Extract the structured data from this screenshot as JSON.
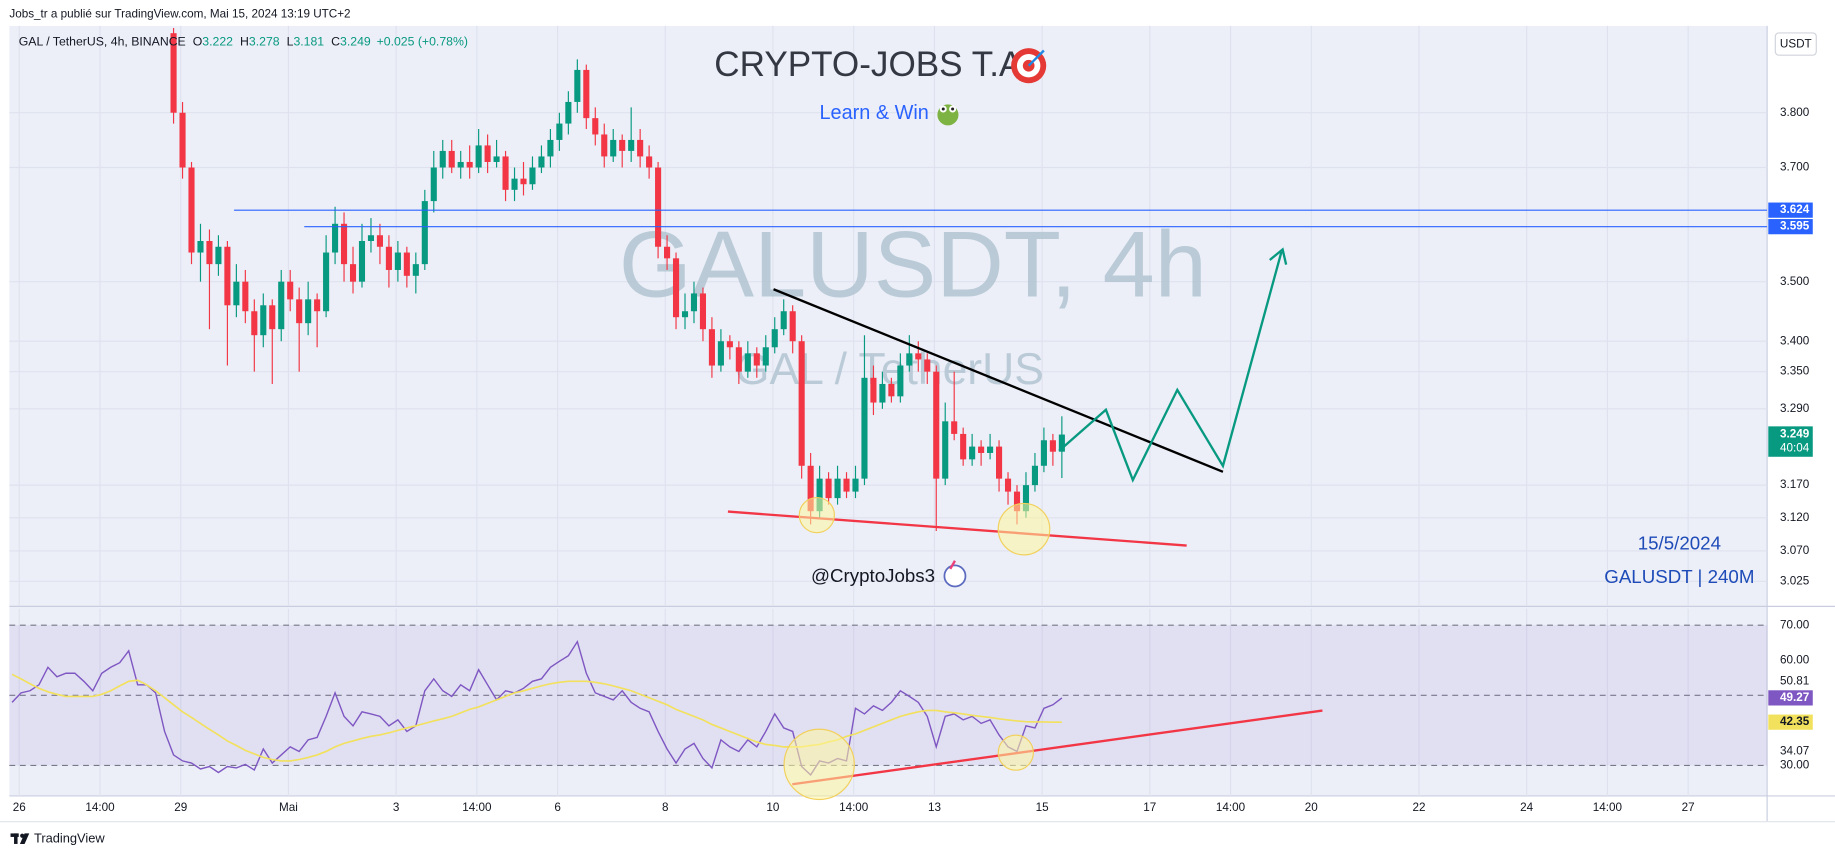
{
  "header": {
    "published": "Jobs_tr a publié sur TradingView.com, Mai 15, 2024 13:19 UTC+2"
  },
  "footer": {
    "brand": "TradingView"
  },
  "chart_data": [
    {
      "type": "candlestick",
      "symbol": "GAL / TetherUS, 4h, BINANCE",
      "ohlc_labels": [
        "O",
        "H",
        "L",
        "C"
      ],
      "change": "+0.025 (+0.78%)",
      "title": "CRYPTO-JOBS T.A",
      "subtitle": "Learn & Win",
      "watermark": "GALUSDT, 4h",
      "watermark_sub": "GAL / TetherUS",
      "currency": "USDT",
      "countdown": "40:04",
      "annotations": [
        "@CryptoJobs3",
        "15/5/2024",
        "GALUSDT | 240M"
      ],
      "log_scale": true,
      "grid": true,
      "ylim": [
        2.99,
        3.964
      ],
      "yticks": [
        3.025,
        {
          "value": 3.07,
          "label": "3.070"
        },
        {
          "value": 3.12,
          "label": "3.120"
        },
        {
          "value": 3.17,
          "label": "3.170"
        },
        {
          "value": 3.29,
          "label": "3.290"
        },
        {
          "value": 3.35,
          "label": "3.350"
        },
        {
          "value": 3.4,
          "label": "3.400"
        },
        {
          "value": 3.5,
          "label": "3.500"
        },
        {
          "value": 3.7,
          "label": "3.700"
        },
        {
          "value": 3.8,
          "label": "3.800"
        }
      ],
      "xlim": [
        -0.3,
        195.6
      ],
      "xticks": [
        {
          "value": 0.8,
          "label": "26"
        },
        {
          "value": 9.8,
          "label": "14:00"
        },
        {
          "value": 18.8,
          "label": "29"
        },
        {
          "value": 30.8,
          "label": "Mai"
        },
        {
          "value": 42.8,
          "label": "3"
        },
        {
          "value": 51.8,
          "label": "14:00"
        },
        {
          "value": 60.8,
          "label": "6"
        },
        {
          "value": 72.8,
          "label": "8"
        },
        {
          "value": 84.8,
          "label": "10"
        },
        {
          "value": 93.8,
          "label": "14:00"
        },
        {
          "value": 102.8,
          "label": "13"
        },
        {
          "value": 114.8,
          "label": "15"
        },
        {
          "value": 126.8,
          "label": "17"
        },
        {
          "value": 135.8,
          "label": "14:00"
        },
        {
          "value": 144.8,
          "label": "20"
        },
        {
          "value": 156.8,
          "label": "22"
        },
        {
          "value": 168.8,
          "label": "24"
        },
        {
          "value": 177.8,
          "label": "14:00"
        },
        {
          "value": 186.8,
          "label": "27"
        }
      ],
      "up_color": "#089981",
      "down_color": "#f23645",
      "price_lines": [
        3.624,
        3.595
      ],
      "price_line_color": "#2962ff",
      "ohlc": [
        null,
        null,
        null,
        null,
        null,
        null,
        null,
        null,
        null,
        null,
        null,
        null,
        null,
        null,
        null,
        null,
        null,
        null,
        [
          3.95,
          3.96,
          3.78,
          3.8
        ],
        [
          3.8,
          3.82,
          3.68,
          3.7
        ],
        [
          3.7,
          3.71,
          3.53,
          3.55
        ],
        [
          3.55,
          3.6,
          3.5,
          3.57
        ],
        [
          3.57,
          3.59,
          3.42,
          3.53
        ],
        [
          3.53,
          3.58,
          3.51,
          3.56
        ],
        [
          3.56,
          3.57,
          3.36,
          3.46
        ],
        [
          3.46,
          3.53,
          3.44,
          3.5
        ],
        [
          3.5,
          3.52,
          3.43,
          3.45
        ],
        [
          3.45,
          3.47,
          3.35,
          3.41
        ],
        [
          3.41,
          3.48,
          3.39,
          3.46
        ],
        [
          3.46,
          3.47,
          3.33,
          3.42
        ],
        [
          3.42,
          3.52,
          3.4,
          3.5
        ],
        [
          3.5,
          3.52,
          3.45,
          3.47
        ],
        [
          3.47,
          3.49,
          3.35,
          3.43
        ],
        [
          3.43,
          3.5,
          3.41,
          3.47
        ],
        [
          3.47,
          3.48,
          3.39,
          3.45
        ],
        [
          3.45,
          3.58,
          3.44,
          3.55
        ],
        [
          3.55,
          3.63,
          3.53,
          3.6
        ],
        [
          3.6,
          3.62,
          3.5,
          3.53
        ],
        [
          3.53,
          3.56,
          3.48,
          3.5
        ],
        [
          3.5,
          3.6,
          3.49,
          3.57
        ],
        [
          3.57,
          3.61,
          3.55,
          3.58
        ],
        [
          3.58,
          3.6,
          3.53,
          3.56
        ],
        [
          3.56,
          3.58,
          3.49,
          3.52
        ],
        [
          3.52,
          3.57,
          3.5,
          3.55
        ],
        [
          3.55,
          3.56,
          3.49,
          3.51
        ],
        [
          3.51,
          3.55,
          3.48,
          3.53
        ],
        [
          3.53,
          3.66,
          3.52,
          3.64
        ],
        [
          3.64,
          3.73,
          3.62,
          3.7
        ],
        [
          3.7,
          3.75,
          3.68,
          3.73
        ],
        [
          3.73,
          3.75,
          3.69,
          3.7
        ],
        [
          3.7,
          3.73,
          3.68,
          3.71
        ],
        [
          3.71,
          3.74,
          3.68,
          3.7
        ],
        [
          3.7,
          3.77,
          3.69,
          3.74
        ],
        [
          3.74,
          3.76,
          3.69,
          3.71
        ],
        [
          3.71,
          3.75,
          3.7,
          3.72
        ],
        [
          3.72,
          3.73,
          3.64,
          3.66
        ],
        [
          3.66,
          3.7,
          3.64,
          3.68
        ],
        [
          3.68,
          3.71,
          3.65,
          3.67
        ],
        [
          3.67,
          3.72,
          3.66,
          3.7
        ],
        [
          3.7,
          3.74,
          3.69,
          3.72
        ],
        [
          3.72,
          3.77,
          3.7,
          3.75
        ],
        [
          3.75,
          3.8,
          3.73,
          3.78
        ],
        [
          3.78,
          3.84,
          3.76,
          3.82
        ],
        [
          3.82,
          3.9,
          3.8,
          3.88
        ],
        [
          3.88,
          3.89,
          3.77,
          3.79
        ],
        [
          3.79,
          3.81,
          3.74,
          3.76
        ],
        [
          3.76,
          3.78,
          3.7,
          3.72
        ],
        [
          3.72,
          3.77,
          3.71,
          3.75
        ],
        [
          3.75,
          3.76,
          3.7,
          3.73
        ],
        [
          3.73,
          3.81,
          3.71,
          3.75
        ],
        [
          3.75,
          3.77,
          3.7,
          3.72
        ],
        [
          3.72,
          3.74,
          3.68,
          3.7
        ],
        [
          3.7,
          3.71,
          3.54,
          3.56
        ],
        [
          3.56,
          3.58,
          3.52,
          3.54
        ],
        [
          3.54,
          3.55,
          3.42,
          3.44
        ],
        [
          3.44,
          3.48,
          3.42,
          3.45
        ],
        [
          3.45,
          3.5,
          3.43,
          3.48
        ],
        [
          3.48,
          3.49,
          3.4,
          3.42
        ],
        [
          3.42,
          3.44,
          3.34,
          3.36
        ],
        [
          3.36,
          3.42,
          3.35,
          3.4
        ],
        [
          3.4,
          3.41,
          3.37,
          3.39
        ],
        [
          3.39,
          3.4,
          3.33,
          3.35
        ],
        [
          3.35,
          3.4,
          3.34,
          3.38
        ],
        [
          3.38,
          3.39,
          3.34,
          3.36
        ],
        [
          3.36,
          3.41,
          3.35,
          3.39
        ],
        [
          3.39,
          3.44,
          3.38,
          3.42
        ],
        [
          3.42,
          3.47,
          3.41,
          3.45
        ],
        [
          3.45,
          3.46,
          3.38,
          3.4
        ],
        [
          3.4,
          3.41,
          3.18,
          3.2
        ],
        [
          3.2,
          3.22,
          3.11,
          3.13
        ],
        [
          3.13,
          3.2,
          3.12,
          3.18
        ],
        [
          3.18,
          3.19,
          3.14,
          3.15
        ],
        [
          3.15,
          3.2,
          3.14,
          3.18
        ],
        [
          3.18,
          3.19,
          3.15,
          3.16
        ],
        [
          3.16,
          3.2,
          3.15,
          3.18
        ],
        [
          3.18,
          3.41,
          3.17,
          3.34
        ],
        [
          3.34,
          3.36,
          3.28,
          3.3
        ],
        [
          3.3,
          3.35,
          3.29,
          3.33
        ],
        [
          3.33,
          3.34,
          3.3,
          3.31
        ],
        [
          3.31,
          3.38,
          3.3,
          3.36
        ],
        [
          3.36,
          3.41,
          3.35,
          3.38
        ],
        [
          3.38,
          3.4,
          3.35,
          3.37
        ],
        [
          3.37,
          3.38,
          3.33,
          3.35
        ],
        [
          3.35,
          3.36,
          3.1,
          3.18
        ],
        [
          3.18,
          3.3,
          3.17,
          3.27
        ],
        [
          3.27,
          3.35,
          3.24,
          3.25
        ],
        [
          3.25,
          3.26,
          3.2,
          3.21
        ],
        [
          3.21,
          3.25,
          3.2,
          3.23
        ],
        [
          3.23,
          3.24,
          3.2,
          3.22
        ],
        [
          3.22,
          3.25,
          3.21,
          3.23
        ],
        [
          3.23,
          3.24,
          3.16,
          3.18
        ],
        [
          3.18,
          3.19,
          3.14,
          3.16
        ],
        [
          3.16,
          3.17,
          3.11,
          3.13
        ],
        [
          3.13,
          3.19,
          3.12,
          3.17
        ],
        [
          3.17,
          3.22,
          3.16,
          3.2
        ],
        [
          3.2,
          3.26,
          3.19,
          3.24
        ],
        [
          3.24,
          3.25,
          3.2,
          3.222
        ],
        [
          3.222,
          3.278,
          3.181,
          3.249
        ]
      ]
    },
    {
      "type": "line",
      "ylim": [
        21.3,
        74.7
      ],
      "yticks": [
        {
          "value": 30,
          "label": "30.00"
        },
        {
          "value": 60,
          "label": "60.00"
        },
        {
          "value": 70,
          "label": "70.00"
        }
      ],
      "levels": [
        70,
        50,
        30
      ],
      "band_color": "#7e57c2",
      "markers": [
        50.81,
        34.07
      ],
      "series": [
        {
          "color": "#7e57c2",
          "values": [
            48,
            50.7,
            51.3,
            53,
            58,
            55.3,
            56.3,
            56.3,
            54,
            51.3,
            56.3,
            58,
            59.3,
            62.7,
            53,
            53,
            50.7,
            39.7,
            33,
            31.3,
            30.7,
            29,
            29.7,
            28,
            29.7,
            29.3,
            30.3,
            28.7,
            34.7,
            30.7,
            33,
            35.3,
            34,
            37.3,
            38,
            44,
            50.7,
            44,
            41.3,
            45.3,
            44.7,
            44,
            41.3,
            43,
            39.7,
            41.3,
            51.3,
            54.7,
            51.3,
            49.7,
            53,
            51.3,
            57.3,
            53,
            48.7,
            51.3,
            50.7,
            52,
            54,
            54.7,
            58,
            59.7,
            61.3,
            65.3,
            56.3,
            50.7,
            49.7,
            48.7,
            51.3,
            48,
            46.3,
            45.3,
            39.7,
            34.7,
            30.7,
            34.7,
            36.3,
            32,
            29.3,
            37.3,
            35.3,
            34,
            37.3,
            35.3,
            39.7,
            44.7,
            40.7,
            39.7,
            29.7,
            27.3,
            31.3,
            30.7,
            32,
            31.3,
            46.3,
            44.7,
            47,
            45.7,
            48,
            51.3,
            49.7,
            48,
            44,
            35.3,
            44,
            44.7,
            43,
            44,
            42,
            43,
            38.7,
            35.3,
            34,
            41.3,
            40.7,
            46.3,
            47.3,
            49.27
          ]
        },
        {
          "color": "#f2e15c",
          "values": [
            56,
            54.7,
            53.3,
            52,
            51,
            50.3,
            49.7,
            49.7,
            49.7,
            49.7,
            50.3,
            51.3,
            52.7,
            54,
            54.3,
            53,
            51.3,
            49.3,
            47.3,
            45.3,
            43.7,
            42,
            40.3,
            38.7,
            37,
            35.7,
            34.3,
            33.3,
            32.3,
            31.7,
            31.3,
            31.3,
            31.7,
            32.3,
            33,
            34,
            35.3,
            36.3,
            37,
            37.7,
            38.3,
            38.7,
            39.3,
            40,
            40.7,
            41.3,
            42,
            42.7,
            43.3,
            44,
            45,
            46,
            46.7,
            47.7,
            48.7,
            49.7,
            50.7,
            51.3,
            52,
            52.7,
            53.3,
            53.7,
            54,
            54,
            54,
            53.7,
            53.3,
            52.7,
            52,
            51.3,
            50.3,
            49.3,
            48.3,
            47.3,
            46,
            45,
            44,
            43,
            41.7,
            40.7,
            39.7,
            38.7,
            37.7,
            36.7,
            36,
            35.7,
            35.3,
            35.3,
            35.3,
            35.7,
            36,
            36.7,
            37.3,
            38.3,
            39,
            40,
            41,
            42,
            43,
            44,
            44.7,
            45.3,
            45.7,
            45.7,
            45.3,
            45,
            44.7,
            44.3,
            44,
            43.7,
            43.3,
            43,
            42.7,
            42.5,
            42.4,
            42.4,
            42.35,
            42.35
          ]
        }
      ]
    }
  ]
}
